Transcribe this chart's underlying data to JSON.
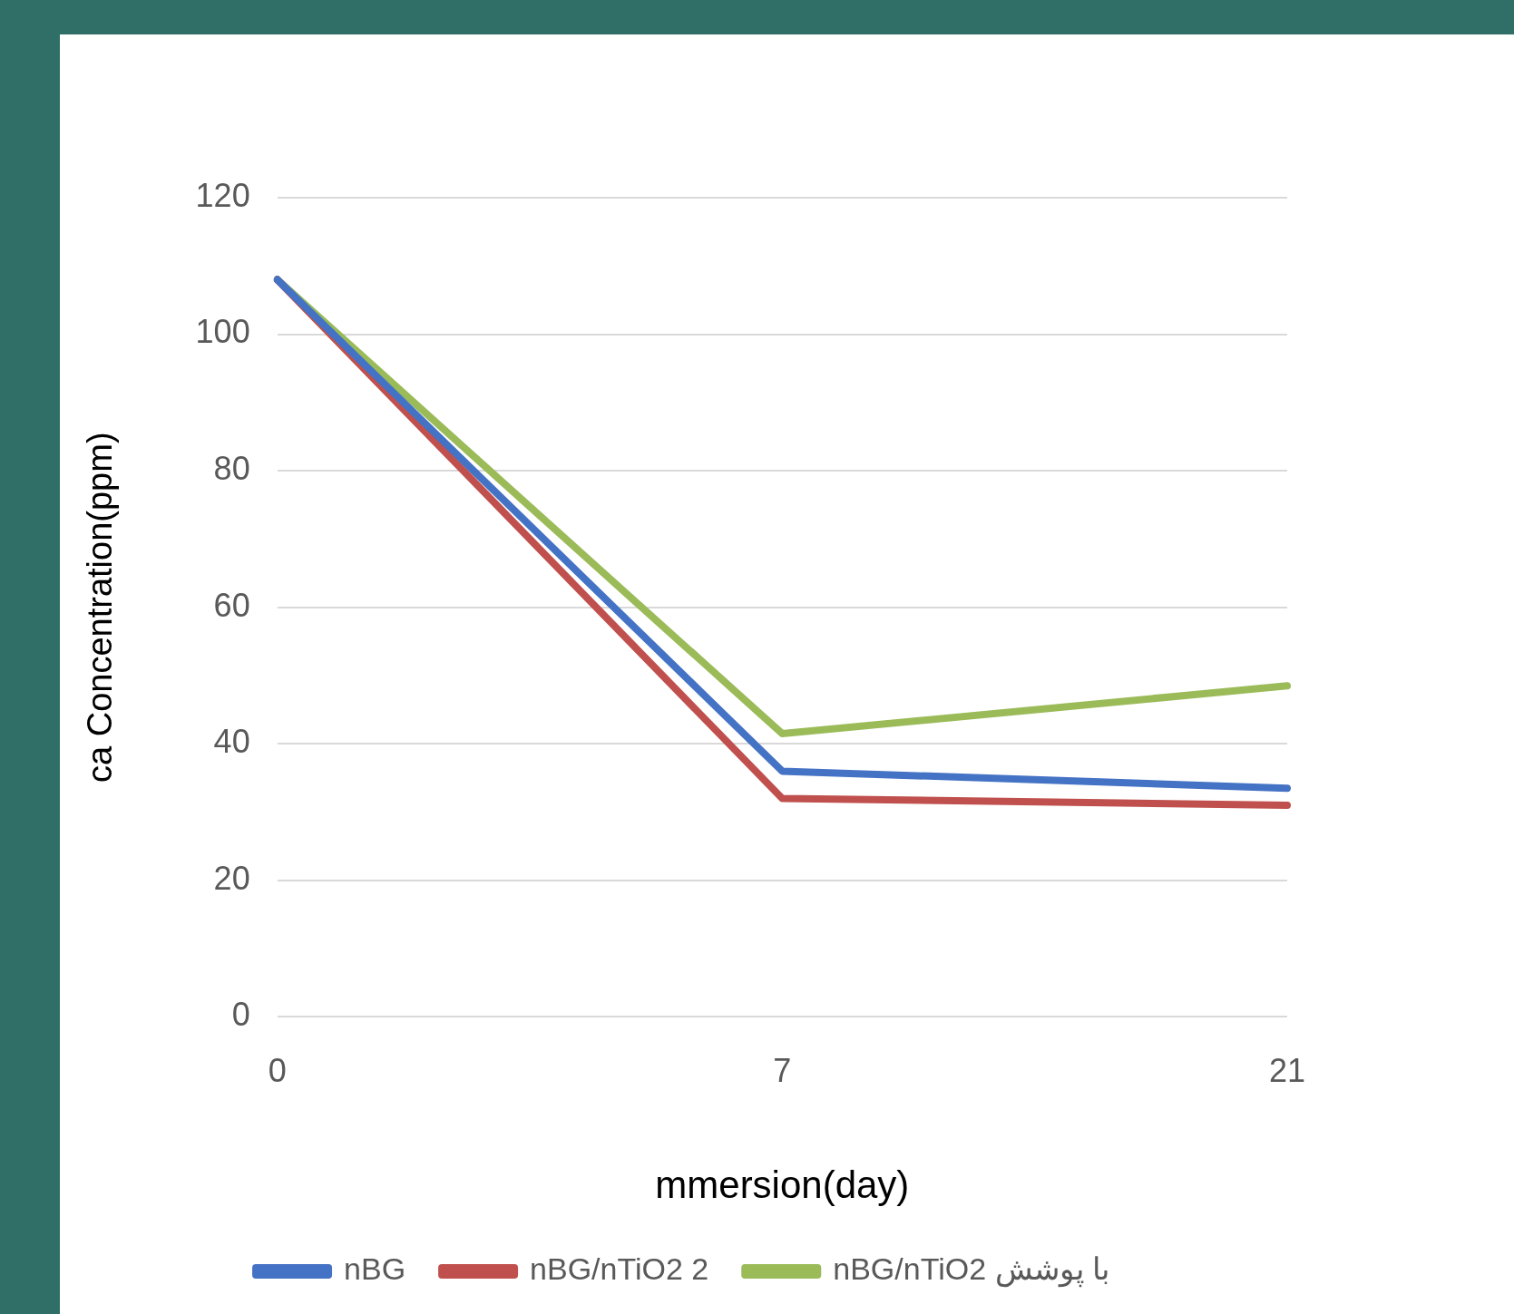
{
  "chart_data": {
    "type": "line",
    "xlabel": "mmersion(day)",
    "ylabel": "ca Concentration(ppm)",
    "categories": [
      "0",
      "7",
      "21"
    ],
    "series": [
      {
        "name": "nBG",
        "color": "#4472c4",
        "values": [
          108,
          36,
          33.5
        ]
      },
      {
        "name": "nBG/nTiO2 2",
        "color": "#c0504d",
        "values": [
          108,
          32,
          31
        ]
      },
      {
        "name": "nBG/nTiO2 با پوشش",
        "color": "#9bbb59",
        "values": [
          108,
          41.5,
          48.5
        ]
      }
    ],
    "ylim": [
      0,
      120
    ],
    "yticks": [
      0,
      20,
      40,
      60,
      80,
      100,
      120
    ],
    "grid": "y",
    "legend": "bottom",
    "marker": "none",
    "line_style": "solid"
  }
}
